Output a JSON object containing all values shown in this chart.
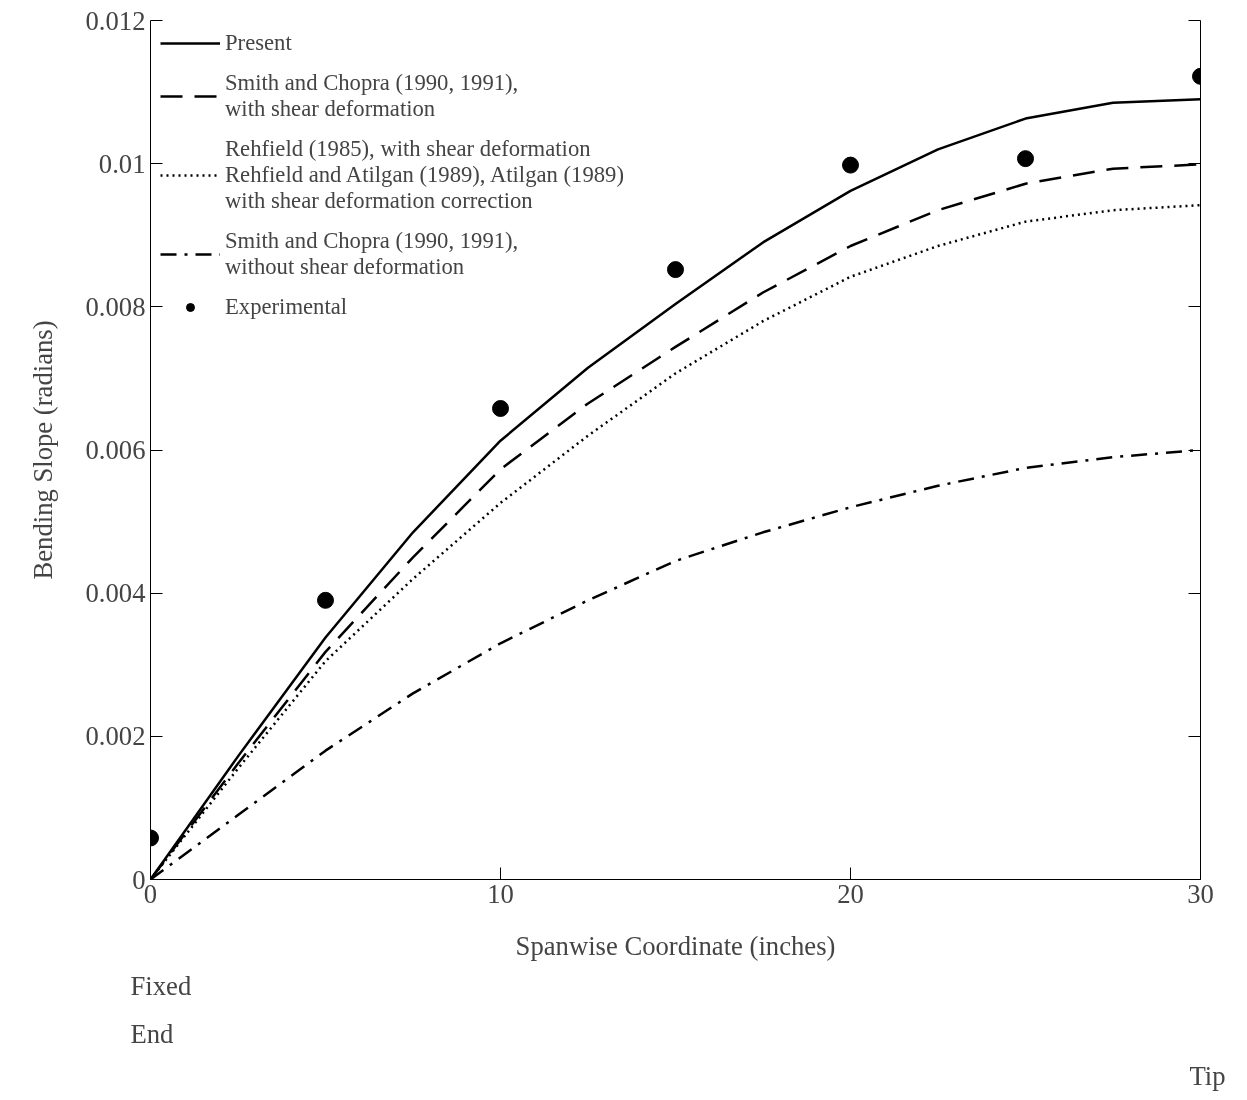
{
  "chart_data": {
    "type": "line",
    "xlabel": "Spanwise Coordinate (inches)",
    "ylabel": "Bending Slope (radians)",
    "x": [
      0,
      2.5,
      5,
      7.5,
      10,
      12.5,
      15,
      17.5,
      20,
      22.5,
      25,
      27.5,
      30
    ],
    "series": [
      {
        "name": "Present",
        "color": "#000000",
        "line_style": "solid",
        "values": [
          0,
          0.00172,
          0.00338,
          0.00485,
          0.00613,
          0.00715,
          0.00804,
          0.0089,
          0.00962,
          0.0102,
          0.01063,
          0.01085,
          0.0109
        ]
      },
      {
        "name": "Smith and Chopra (1990, 1991),\nwith shear deformation",
        "color": "#000000",
        "line_style": "dashed",
        "values": [
          0,
          0.00162,
          0.00318,
          0.0045,
          0.00573,
          0.00665,
          0.00744,
          0.0082,
          0.00885,
          0.00935,
          0.00972,
          0.00993,
          0.00999
        ]
      },
      {
        "name": "Rehfield (1985), with shear deformation\nRehfield and Atilgan (1989), Atilgan (1989)\nwith shear deformation correction",
        "color": "#000000",
        "line_style": "dotted",
        "values": [
          0,
          0.00155,
          0.00305,
          0.0042,
          0.00526,
          0.0062,
          0.00707,
          0.0078,
          0.00842,
          0.00885,
          0.00919,
          0.00935,
          0.00942
        ]
      },
      {
        "name": "Smith and Chopra (1990, 1991),\nwithout shear deformation",
        "color": "#000000",
        "line_style": "dashdot",
        "values": [
          0,
          0.0009,
          0.0018,
          0.0026,
          0.0033,
          0.0039,
          0.00445,
          0.00485,
          0.0052,
          0.0055,
          0.00575,
          0.0059,
          0.006
        ]
      },
      {
        "name": "Experimental",
        "type": "scatter",
        "marker": "circle",
        "color": "#000000",
        "x": [
          0,
          5,
          10,
          15,
          20,
          25,
          30
        ],
        "values": [
          0.00058,
          0.0039,
          0.00658,
          0.00852,
          0.00998,
          0.01007,
          0.01122
        ]
      }
    ],
    "xlim": [
      0,
      30
    ],
    "ylim": [
      0,
      0.012
    ],
    "xticks": [
      0,
      10,
      20,
      30
    ],
    "yticks": [
      0,
      0.002,
      0.004,
      0.006,
      0.008,
      0.01,
      0.012
    ],
    "grid": false,
    "legend": "top left",
    "annotations": [
      "Fixed\nEnd",
      "Tip"
    ]
  }
}
